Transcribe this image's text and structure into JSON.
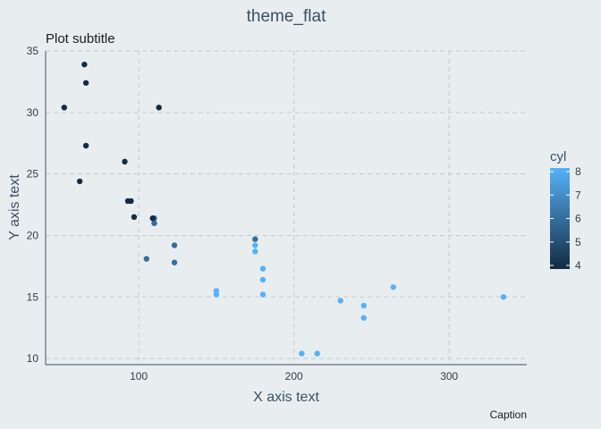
{
  "chart_data": {
    "type": "scatter",
    "title": "theme_flat",
    "subtitle": "Plot subtitle",
    "caption": "Caption",
    "xlabel": "X axis text",
    "ylabel": "Y axis text",
    "xlim": [
      40,
      350
    ],
    "ylim": [
      9.5,
      35
    ],
    "x_ticks": [
      100,
      200,
      300
    ],
    "y_ticks": [
      10,
      15,
      20,
      25,
      30,
      35
    ],
    "grid": true,
    "legend": {
      "title": "cyl",
      "position": "right",
      "ticks": [
        4,
        5,
        6,
        7,
        8
      ],
      "range": [
        4,
        8
      ],
      "low_color": "#132b43",
      "high_color": "#56b1f7"
    },
    "points": [
      {
        "x": 110,
        "y": 21.0,
        "c": 6
      },
      {
        "x": 110,
        "y": 21.0,
        "c": 6
      },
      {
        "x": 93,
        "y": 22.8,
        "c": 4
      },
      {
        "x": 110,
        "y": 21.4,
        "c": 6
      },
      {
        "x": 175,
        "y": 18.7,
        "c": 8
      },
      {
        "x": 105,
        "y": 18.1,
        "c": 6
      },
      {
        "x": 245,
        "y": 14.3,
        "c": 8
      },
      {
        "x": 62,
        "y": 24.4,
        "c": 4
      },
      {
        "x": 95,
        "y": 22.8,
        "c": 4
      },
      {
        "x": 123,
        "y": 19.2,
        "c": 6
      },
      {
        "x": 123,
        "y": 17.8,
        "c": 6
      },
      {
        "x": 180,
        "y": 16.4,
        "c": 8
      },
      {
        "x": 180,
        "y": 17.3,
        "c": 8
      },
      {
        "x": 180,
        "y": 15.2,
        "c": 8
      },
      {
        "x": 205,
        "y": 10.4,
        "c": 8
      },
      {
        "x": 215,
        "y": 10.4,
        "c": 8
      },
      {
        "x": 230,
        "y": 14.7,
        "c": 8
      },
      {
        "x": 66,
        "y": 32.4,
        "c": 4
      },
      {
        "x": 52,
        "y": 30.4,
        "c": 4
      },
      {
        "x": 65,
        "y": 33.9,
        "c": 4
      },
      {
        "x": 97,
        "y": 21.5,
        "c": 4
      },
      {
        "x": 150,
        "y": 15.5,
        "c": 8
      },
      {
        "x": 150,
        "y": 15.2,
        "c": 8
      },
      {
        "x": 245,
        "y": 13.3,
        "c": 8
      },
      {
        "x": 175,
        "y": 19.2,
        "c": 8
      },
      {
        "x": 66,
        "y": 27.3,
        "c": 4
      },
      {
        "x": 91,
        "y": 26.0,
        "c": 4
      },
      {
        "x": 113,
        "y": 30.4,
        "c": 4
      },
      {
        "x": 264,
        "y": 15.8,
        "c": 8
      },
      {
        "x": 175,
        "y": 19.7,
        "c": 6
      },
      {
        "x": 335,
        "y": 15.0,
        "c": 8
      },
      {
        "x": 109,
        "y": 21.4,
        "c": 4
      }
    ]
  }
}
